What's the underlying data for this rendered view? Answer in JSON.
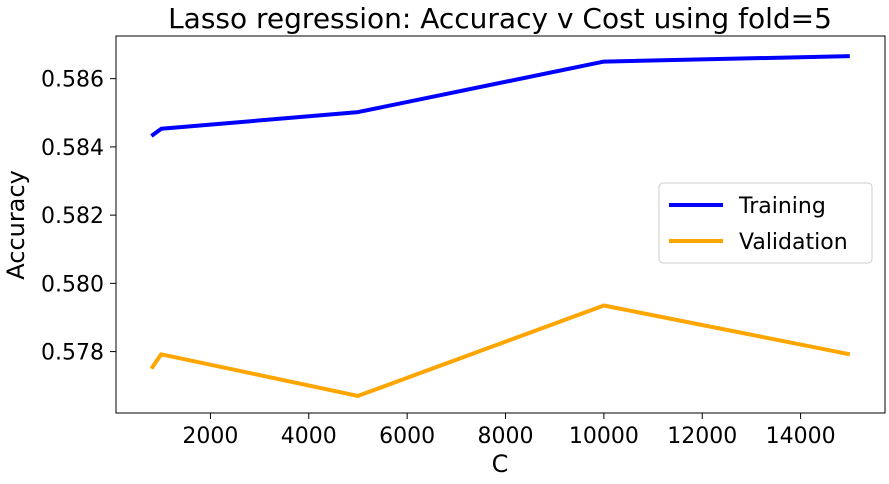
{
  "chart_data": {
    "type": "line",
    "title": "Lasso regression: Accuracy v Cost using fold=5",
    "xlabel": "C",
    "ylabel": "Accuracy",
    "x": [
      800,
      1000,
      5000,
      10000,
      15000
    ],
    "series": [
      {
        "name": "Training",
        "color": "#0000ff",
        "values": [
          0.58432,
          0.58453,
          0.58502,
          0.5865,
          0.58666
        ]
      },
      {
        "name": "Validation",
        "color": "#ffa500",
        "values": [
          0.5775,
          0.57792,
          0.5767,
          0.57935,
          0.57792
        ]
      }
    ],
    "xlim": [
      80,
      15716
    ],
    "ylim": [
      0.5762,
      0.58725
    ],
    "xticks": [
      2000,
      4000,
      6000,
      8000,
      10000,
      12000,
      14000
    ],
    "xtick_labels": [
      "2000",
      "4000",
      "6000",
      "8000",
      "10000",
      "12000",
      "14000"
    ],
    "yticks": [
      0.578,
      0.58,
      0.582,
      0.584,
      0.586
    ],
    "ytick_labels": [
      "0.578",
      "0.580",
      "0.582",
      "0.584",
      "0.586"
    ],
    "grid": false,
    "legend_position": "center-right"
  }
}
